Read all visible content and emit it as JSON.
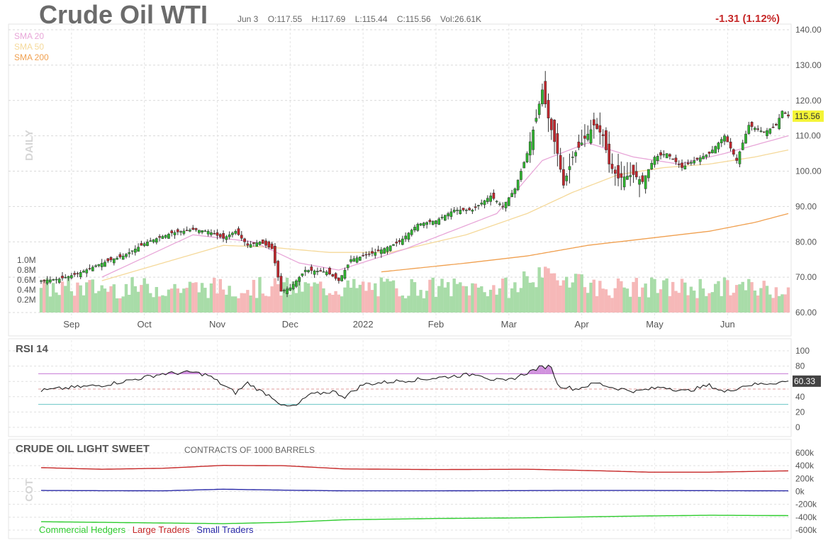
{
  "header": {
    "title": "Crude Oil WTI",
    "date": "Jun 3",
    "open": "O:117.55",
    "high": "H:117.69",
    "low": "L:115.44",
    "close": "C:115.56",
    "volume": "Vol:26.61K",
    "change": "-1.31 (1.12%)"
  },
  "sma_legend": [
    {
      "label": "SMA 20",
      "color": "#e8a6d8"
    },
    {
      "label": "SMA 50",
      "color": "#f5d99a"
    },
    {
      "label": "SMA 200",
      "color": "#f0a050"
    }
  ],
  "panels": {
    "price_side_label": "DAILY",
    "rsi_title": "RSI 14",
    "cot_title": "CRUDE OIL LIGHT SWEET",
    "cot_subtitle": "CONTRACTS OF 1000 BARRELS",
    "cot_side_label": "COT"
  },
  "cot_legend": [
    {
      "label": "Commercial Hedgers",
      "color": "#2ecc2e"
    },
    {
      "label": "Large Traders",
      "color": "#c62828"
    },
    {
      "label": "Small Traders",
      "color": "#2a2aa8"
    }
  ],
  "colors": {
    "up": "#2fb52f",
    "down": "#c0272d",
    "vol_up": "#a8dca8",
    "vol_down": "#f6b8b8",
    "rsi_band": "#c678d6",
    "rsi_low": "#6ac6c6",
    "last_price_bg": "#f4f436"
  },
  "chart_data": [
    {
      "type": "candlestick",
      "title": "Crude Oil WTI",
      "x_ticks": [
        "Sep",
        "Oct",
        "Nov",
        "Dec",
        "2022",
        "Feb",
        "Mar",
        "Apr",
        "May",
        "Jun"
      ],
      "y_ticks": [
        "140.00",
        "130.00",
        "120.00",
        "110.00",
        "100.00",
        "90.00",
        "80.00",
        "70.00",
        "60.00"
      ],
      "ylim": [
        60,
        140
      ],
      "last_price": "115.56",
      "close_anchors": [
        [
          0,
          69
        ],
        [
          6,
          69.5
        ],
        [
          12,
          71
        ],
        [
          20,
          74
        ],
        [
          27,
          76
        ],
        [
          35,
          80
        ],
        [
          43,
          82.5
        ],
        [
          50,
          83.5
        ],
        [
          55,
          83
        ],
        [
          60,
          81
        ],
        [
          64,
          83
        ],
        [
          68,
          79
        ],
        [
          72,
          80
        ],
        [
          76,
          78
        ],
        [
          79,
          66
        ],
        [
          82,
          67
        ],
        [
          87,
          72
        ],
        [
          94,
          71.5
        ],
        [
          98,
          69
        ],
        [
          102,
          75
        ],
        [
          110,
          77
        ],
        [
          118,
          80
        ],
        [
          124,
          85
        ],
        [
          130,
          86
        ],
        [
          136,
          89
        ],
        [
          142,
          89
        ],
        [
          148,
          93
        ],
        [
          152,
          90
        ],
        [
          156,
          95
        ],
        [
          160,
          105
        ],
        [
          163,
          115
        ],
        [
          165,
          123
        ],
        [
          167,
          115
        ],
        [
          170,
          105
        ],
        [
          172,
          96
        ],
        [
          175,
          104
        ],
        [
          178,
          108
        ],
        [
          182,
          113
        ],
        [
          185,
          110
        ],
        [
          187,
          102
        ],
        [
          190,
          98
        ],
        [
          195,
          99
        ],
        [
          198,
          97
        ],
        [
          202,
          104
        ],
        [
          206,
          105
        ],
        [
          211,
          101
        ],
        [
          215,
          103
        ],
        [
          220,
          105
        ],
        [
          225,
          110
        ],
        [
          229,
          103
        ],
        [
          233,
          113
        ],
        [
          238,
          111
        ],
        [
          242,
          113
        ],
        [
          244,
          117
        ],
        [
          246,
          115.56
        ]
      ],
      "sma20_anchors": [
        [
          20,
          70
        ],
        [
          50,
          82
        ],
        [
          70,
          80
        ],
        [
          85,
          74
        ],
        [
          98,
          72
        ],
        [
          120,
          78
        ],
        [
          150,
          88
        ],
        [
          165,
          103
        ],
        [
          180,
          108
        ],
        [
          195,
          104
        ],
        [
          210,
          102
        ],
        [
          225,
          105
        ],
        [
          246,
          110
        ]
      ],
      "sma50_anchors": [
        [
          20,
          69
        ],
        [
          60,
          79
        ],
        [
          75,
          78.5
        ],
        [
          95,
          77
        ],
        [
          115,
          77
        ],
        [
          140,
          82
        ],
        [
          160,
          88
        ],
        [
          175,
          94
        ],
        [
          190,
          99
        ],
        [
          205,
          101
        ],
        [
          220,
          102
        ],
        [
          235,
          104
        ],
        [
          246,
          106
        ]
      ],
      "sma200_anchors": [
        [
          112,
          71.5
        ],
        [
          140,
          74
        ],
        [
          160,
          76
        ],
        [
          180,
          79
        ],
        [
          200,
          81
        ],
        [
          220,
          83
        ],
        [
          235,
          85.5
        ],
        [
          246,
          88
        ]
      ],
      "volume_ticks": [
        "1.0M",
        "0.8M",
        "0.6M",
        "0.4M",
        "0.2M"
      ],
      "volume_range": [
        0.15,
        0.55
      ]
    },
    {
      "type": "line",
      "title": "RSI 14",
      "y_ticks": [
        "100",
        "80",
        "60",
        "40",
        "20",
        "0"
      ],
      "ylim": [
        0,
        100
      ],
      "overbought": 70,
      "oversold": 30,
      "last_value": "60.33",
      "anchors": [
        [
          0,
          48
        ],
        [
          10,
          52
        ],
        [
          20,
          55
        ],
        [
          30,
          62
        ],
        [
          40,
          70
        ],
        [
          50,
          72
        ],
        [
          55,
          68
        ],
        [
          60,
          55
        ],
        [
          64,
          45
        ],
        [
          68,
          58
        ],
        [
          72,
          48
        ],
        [
          76,
          40
        ],
        [
          80,
          27
        ],
        [
          84,
          28
        ],
        [
          88,
          42
        ],
        [
          96,
          47
        ],
        [
          100,
          40
        ],
        [
          106,
          56
        ],
        [
          116,
          60
        ],
        [
          126,
          63
        ],
        [
          136,
          67
        ],
        [
          144,
          70
        ],
        [
          148,
          63
        ],
        [
          153,
          60
        ],
        [
          158,
          68
        ],
        [
          164,
          78
        ],
        [
          168,
          80
        ],
        [
          170,
          55
        ],
        [
          176,
          50
        ],
        [
          183,
          58
        ],
        [
          188,
          52
        ],
        [
          196,
          47
        ],
        [
          205,
          53
        ],
        [
          212,
          47
        ],
        [
          220,
          55
        ],
        [
          225,
          46
        ],
        [
          232,
          55
        ],
        [
          238,
          57
        ],
        [
          246,
          60
        ]
      ]
    },
    {
      "type": "line",
      "title": "CRUDE OIL LIGHT SWEET",
      "subtitle": "CONTRACTS OF 1000 BARRELS",
      "y_ticks": [
        "600k",
        "400k",
        "200k",
        "0k",
        "-200k",
        "-400k",
        "-600k"
      ],
      "ylim": [
        -600000,
        600000
      ],
      "series": [
        {
          "name": "Large Traders",
          "anchors": [
            [
              0,
              370000
            ],
            [
              20,
              345000
            ],
            [
              40,
              360000
            ],
            [
              60,
              405000
            ],
            [
              80,
              400000
            ],
            [
              100,
              350000
            ],
            [
              130,
              340000
            ],
            [
              160,
              345000
            ],
            [
              185,
              320000
            ],
            [
              200,
              300000
            ],
            [
              220,
              300000
            ],
            [
              246,
              320000
            ]
          ]
        },
        {
          "name": "Small Traders",
          "anchors": [
            [
              0,
              15000
            ],
            [
              40,
              10000
            ],
            [
              60,
              35000
            ],
            [
              80,
              20000
            ],
            [
              100,
              10000
            ],
            [
              130,
              10000
            ],
            [
              170,
              15000
            ],
            [
              200,
              15000
            ],
            [
              246,
              10000
            ]
          ]
        },
        {
          "name": "Commercial Hedgers",
          "anchors": [
            [
              0,
              -470000
            ],
            [
              20,
              -480000
            ],
            [
              60,
              -500000
            ],
            [
              80,
              -480000
            ],
            [
              100,
              -440000
            ],
            [
              130,
              -420000
            ],
            [
              160,
              -410000
            ],
            [
              185,
              -390000
            ],
            [
              200,
              -380000
            ],
            [
              220,
              -370000
            ],
            [
              246,
              -375000
            ]
          ]
        }
      ]
    }
  ]
}
